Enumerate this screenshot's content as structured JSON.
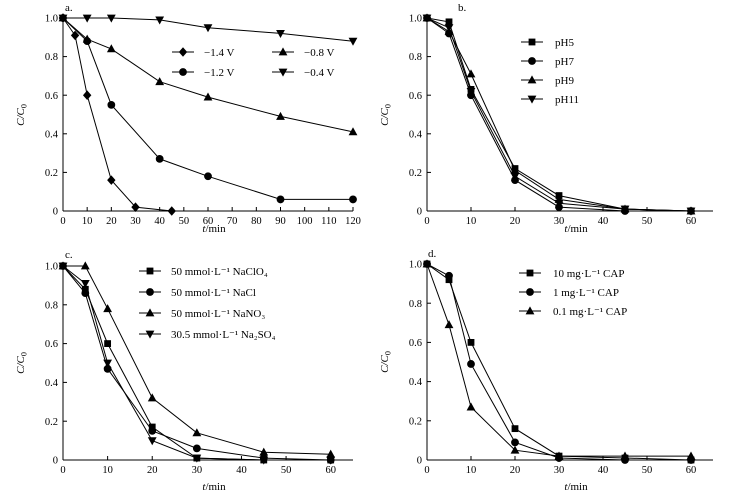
{
  "chart_data": [
    {
      "type": "line",
      "panel_label": "a.",
      "xlabel": "t/min",
      "ylabel": "C/C0",
      "xlim": [
        0,
        120
      ],
      "ylim": [
        0,
        1.0
      ],
      "xticks": [
        "0",
        "10",
        "20",
        "30",
        "40",
        "50",
        "60",
        "70",
        "80",
        "90",
        "100",
        "110",
        "120"
      ],
      "yticks": [
        "0",
        "0.2",
        "0.4",
        "0.6",
        "0.8",
        "1.0"
      ],
      "legend_columns": 2,
      "series": [
        {
          "name": "−1.4 V",
          "marker": "diamond",
          "x": [
            0,
            5,
            10,
            20,
            30,
            45
          ],
          "y": [
            1.0,
            0.91,
            0.6,
            0.16,
            0.02,
            0.0
          ]
        },
        {
          "name": "−1.2 V",
          "marker": "circle",
          "x": [
            0,
            10,
            20,
            40,
            60,
            90,
            120
          ],
          "y": [
            1.0,
            0.88,
            0.55,
            0.27,
            0.18,
            0.06,
            0.06
          ]
        },
        {
          "name": "−0.8 V",
          "marker": "triangle-up",
          "x": [
            0,
            10,
            20,
            40,
            60,
            90,
            120
          ],
          "y": [
            1.0,
            0.89,
            0.84,
            0.67,
            0.59,
            0.49,
            0.41
          ]
        },
        {
          "name": "−0.4 V",
          "marker": "triangle-down",
          "x": [
            0,
            10,
            20,
            40,
            60,
            90,
            120
          ],
          "y": [
            1.0,
            1.0,
            1.0,
            0.99,
            0.95,
            0.92,
            0.88
          ]
        }
      ]
    },
    {
      "type": "line",
      "panel_label": "b.",
      "xlabel": "t/min",
      "ylabel": "C/C0",
      "xlim": [
        0,
        65
      ],
      "ylim": [
        0,
        1.0
      ],
      "xticks": [
        "0",
        "10",
        "20",
        "30",
        "40",
        "50",
        "60"
      ],
      "yticks": [
        "0",
        "0.2",
        "0.4",
        "0.6",
        "0.8",
        "1.0"
      ],
      "legend_columns": 1,
      "series": [
        {
          "name": "pH5",
          "marker": "square",
          "x": [
            0,
            5,
            10,
            20,
            30,
            45,
            60
          ],
          "y": [
            1.0,
            0.98,
            0.63,
            0.22,
            0.08,
            0.01,
            0.0
          ]
        },
        {
          "name": "pH7",
          "marker": "circle",
          "x": [
            0,
            5,
            10,
            20,
            30,
            45,
            60
          ],
          "y": [
            1.0,
            0.92,
            0.6,
            0.16,
            0.02,
            0.0,
            0.0
          ]
        },
        {
          "name": "pH9",
          "marker": "triangle-up",
          "x": [
            0,
            5,
            10,
            20,
            30,
            45,
            60
          ],
          "y": [
            1.0,
            0.93,
            0.71,
            0.21,
            0.06,
            0.01,
            0.0
          ]
        },
        {
          "name": "pH11",
          "marker": "triangle-down",
          "x": [
            0,
            5,
            10,
            20,
            30,
            45,
            60
          ],
          "y": [
            1.0,
            0.95,
            0.62,
            0.18,
            0.04,
            0.01,
            0.0
          ]
        }
      ]
    },
    {
      "type": "line",
      "panel_label": "c.",
      "xlabel": "t/min",
      "ylabel": "C/C0",
      "xlim": [
        0,
        65
      ],
      "ylim": [
        0,
        1.0
      ],
      "xticks": [
        "0",
        "10",
        "20",
        "30",
        "40",
        "50",
        "60"
      ],
      "yticks": [
        "0",
        "0.2",
        "0.4",
        "0.6",
        "0.8",
        "1.0"
      ],
      "legend_columns": 1,
      "series": [
        {
          "name": "50 mmol·L⁻¹ NaClO₄",
          "marker": "square",
          "x": [
            0,
            5,
            10,
            20,
            30,
            45,
            60
          ],
          "y": [
            1.0,
            0.88,
            0.6,
            0.17,
            0.01,
            0.0,
            0.0
          ]
        },
        {
          "name": "50 mmol·L⁻¹ NaCl",
          "marker": "circle",
          "x": [
            0,
            5,
            10,
            20,
            30,
            45,
            60
          ],
          "y": [
            1.0,
            0.86,
            0.47,
            0.15,
            0.06,
            0.01,
            0.0
          ]
        },
        {
          "name": "50 mmol·L⁻¹ NaNO₃",
          "marker": "triangle-up",
          "x": [
            0,
            5,
            10,
            20,
            30,
            45,
            60
          ],
          "y": [
            1.0,
            1.0,
            0.78,
            0.32,
            0.14,
            0.04,
            0.03
          ]
        },
        {
          "name": "30.5 mmol·L⁻¹ Na₂SO₄",
          "marker": "triangle-down",
          "x": [
            0,
            5,
            10,
            20,
            30,
            45,
            60
          ],
          "y": [
            1.0,
            0.91,
            0.5,
            0.1,
            0.01,
            0.0,
            0.0
          ]
        }
      ]
    },
    {
      "type": "line",
      "panel_label": "d.",
      "xlabel": "t/min",
      "ylabel": "C/C0",
      "xlim": [
        0,
        65
      ],
      "ylim": [
        0,
        1.0
      ],
      "xticks": [
        "0",
        "10",
        "20",
        "30",
        "40",
        "50",
        "60"
      ],
      "yticks": [
        "0",
        "0.2",
        "0.4",
        "0.6",
        "0.8",
        "1.0"
      ],
      "legend_columns": 1,
      "series": [
        {
          "name": "10 mg·L⁻¹ CAP",
          "marker": "square",
          "x": [
            0,
            5,
            10,
            20,
            30,
            45,
            60
          ],
          "y": [
            1.0,
            0.92,
            0.6,
            0.16,
            0.02,
            0.01,
            0.0
          ]
        },
        {
          "name": "1 mg·L⁻¹ CAP",
          "marker": "circle",
          "x": [
            0,
            5,
            10,
            20,
            30,
            45,
            60
          ],
          "y": [
            1.0,
            0.94,
            0.49,
            0.09,
            0.01,
            0.0,
            0.0
          ]
        },
        {
          "name": "0.1 mg·L⁻¹ CAP",
          "marker": "triangle-up",
          "x": [
            0,
            5,
            10,
            20,
            30,
            45,
            60
          ],
          "y": [
            1.0,
            0.69,
            0.27,
            0.05,
            0.02,
            0.02,
            0.02
          ]
        }
      ]
    }
  ]
}
